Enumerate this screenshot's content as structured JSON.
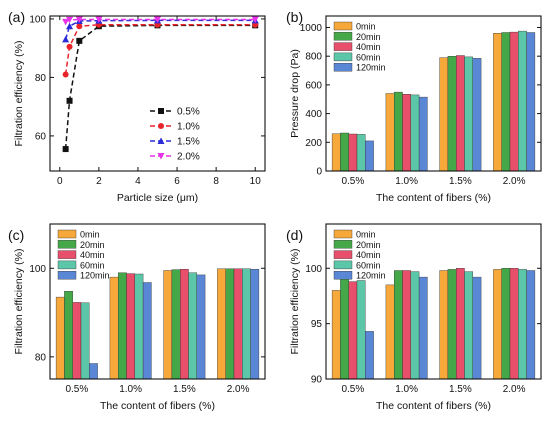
{
  "chart_data": [
    {
      "panel_label": "(a)",
      "type": "line",
      "xlabel": "Particle size (μm)",
      "ylabel": "Filtration efficiency (%)",
      "xlim": [
        -0.5,
        10.5
      ],
      "ylim": [
        48,
        101
      ],
      "xticks": [
        0,
        2,
        4,
        6,
        8,
        10
      ],
      "yticks": [
        60,
        80,
        100
      ],
      "legend_position": "center-right",
      "series": [
        {
          "name": "0.5%",
          "color": "#111111",
          "marker": "square",
          "x": [
            0.3,
            0.5,
            1.0,
            2.0,
            5.0,
            10.0
          ],
          "y": [
            55.5,
            72.0,
            92.5,
            97.5,
            97.8,
            97.8
          ]
        },
        {
          "name": "1.0%",
          "color": "#e8242a",
          "marker": "circle",
          "x": [
            0.3,
            0.5,
            1.0,
            2.0,
            5.0,
            10.0
          ],
          "y": [
            81.0,
            90.5,
            97.5,
            98.0,
            98.0,
            98.0
          ]
        },
        {
          "name": "1.5%",
          "color": "#2b2bd8",
          "marker": "triangle",
          "x": [
            0.3,
            0.5,
            1.0,
            2.0,
            5.0,
            10.0
          ],
          "y": [
            93.0,
            97.5,
            99.3,
            99.4,
            99.5,
            99.5
          ]
        },
        {
          "name": "2.0%",
          "color": "#e833e8",
          "marker": "triangle-down",
          "x": [
            0.3,
            0.5,
            1.0,
            2.0,
            5.0,
            10.0
          ],
          "y": [
            99.0,
            99.7,
            99.8,
            99.8,
            99.8,
            99.8
          ]
        }
      ]
    },
    {
      "panel_label": "(b)",
      "type": "bar",
      "xlabel": "The content of fibers (%)",
      "ylabel": "Pressure drop (Pa)",
      "categories": [
        "0.5%",
        "1.0%",
        "1.5%",
        "2.0%"
      ],
      "ylim": [
        0,
        1080
      ],
      "yticks": [
        0,
        200,
        400,
        600,
        800,
        1000
      ],
      "legend_position": "top-left",
      "series": [
        {
          "name": "0min",
          "color": "#f6a83a",
          "values": [
            260,
            540,
            790,
            960
          ]
        },
        {
          "name": "20min",
          "color": "#45a848",
          "values": [
            265,
            550,
            800,
            965
          ]
        },
        {
          "name": "40min",
          "color": "#e84f6b",
          "values": [
            258,
            535,
            805,
            968
          ]
        },
        {
          "name": "60min",
          "color": "#5cc7a8",
          "values": [
            255,
            530,
            795,
            975
          ]
        },
        {
          "name": "120min",
          "color": "#5a86d6",
          "values": [
            210,
            515,
            785,
            965
          ]
        }
      ]
    },
    {
      "panel_label": "(c)",
      "type": "bar",
      "xlabel": "The content of fibers (%)",
      "ylabel": "Filtration efficiency (%)",
      "categories": [
        "0.5%",
        "1.0%",
        "1.5%",
        "2.0%"
      ],
      "ylim": [
        75,
        110
      ],
      "yticks": [
        80,
        100
      ],
      "legend_position": "top-left",
      "series": [
        {
          "name": "0min",
          "color": "#f6a83a",
          "values": [
            93.5,
            98.0,
            99.5,
            99.9
          ]
        },
        {
          "name": "20min",
          "color": "#45a848",
          "values": [
            94.8,
            99.0,
            99.7,
            99.9
          ]
        },
        {
          "name": "40min",
          "color": "#e84f6b",
          "values": [
            92.3,
            98.8,
            99.8,
            99.9
          ]
        },
        {
          "name": "60min",
          "color": "#5cc7a8",
          "values": [
            92.2,
            98.7,
            99.0,
            99.9
          ]
        },
        {
          "name": "120min",
          "color": "#5a86d6",
          "values": [
            78.5,
            96.8,
            98.5,
            99.8
          ]
        }
      ]
    },
    {
      "panel_label": "(d)",
      "type": "bar",
      "xlabel": "The content of fibers (%)",
      "ylabel": "Filtration efficiency (%)",
      "categories": [
        "0.5%",
        "1.0%",
        "1.5%",
        "2.0%"
      ],
      "ylim": [
        90,
        104
      ],
      "yticks": [
        90,
        95,
        100
      ],
      "legend_position": "top-left",
      "series": [
        {
          "name": "0min",
          "color": "#f6a83a",
          "values": [
            98.0,
            98.5,
            99.8,
            99.9
          ]
        },
        {
          "name": "20min",
          "color": "#45a848",
          "values": [
            99.2,
            99.8,
            99.9,
            100.0
          ]
        },
        {
          "name": "40min",
          "color": "#e84f6b",
          "values": [
            98.8,
            99.8,
            100.0,
            100.0
          ]
        },
        {
          "name": "60min",
          "color": "#5cc7a8",
          "values": [
            98.9,
            99.7,
            99.7,
            99.9
          ]
        },
        {
          "name": "120min",
          "color": "#5a86d6",
          "values": [
            94.3,
            99.2,
            99.2,
            99.8
          ]
        }
      ]
    }
  ]
}
